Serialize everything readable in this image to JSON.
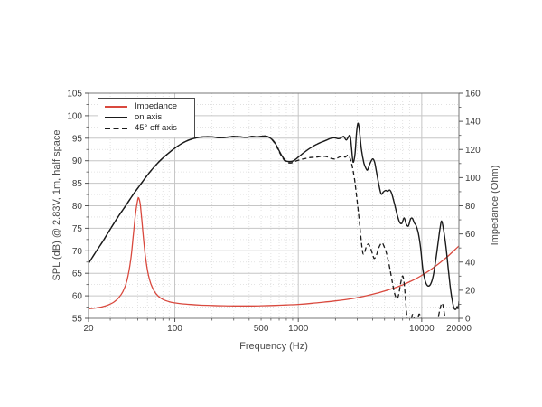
{
  "chart_data": {
    "type": "line",
    "title": "",
    "xlabel": "Frequency (Hz)",
    "ylabel_left": "SPL (dB) @ 2.83V, 1m, half space",
    "ylabel_right": "Impedance (Ohm)",
    "x_scale": "log",
    "xlim": [
      20,
      20000
    ],
    "ylim_left": [
      55,
      105
    ],
    "ylim_right": [
      0,
      160
    ],
    "grid": "major+minor",
    "legend_position": "top-left",
    "x_tick_labels": [
      {
        "value": 20,
        "label": "20"
      },
      {
        "value": 100,
        "label": "100"
      },
      {
        "value": 500,
        "label": "500"
      },
      {
        "value": 1000,
        "label": "1000"
      },
      {
        "value": 10000,
        "label": "10000"
      },
      {
        "value": 20000,
        "label": "20000"
      }
    ],
    "x_gridlines_major": [
      100,
      1000,
      10000
    ],
    "x_gridlines_minor": [
      30,
      40,
      50,
      60,
      70,
      80,
      90,
      200,
      300,
      400,
      500,
      600,
      700,
      800,
      900,
      2000,
      3000,
      4000,
      5000,
      6000,
      7000,
      8000,
      9000
    ],
    "y_left_ticks_major": [
      55,
      60,
      65,
      70,
      75,
      80,
      85,
      90,
      95,
      100,
      105
    ],
    "y_left_ticks_minor": [
      57.5,
      62.5,
      67.5,
      72.5,
      77.5,
      82.5,
      87.5,
      92.5,
      97.5,
      102.5
    ],
    "y_right_ticks_major": [
      0,
      20,
      40,
      60,
      80,
      100,
      120,
      140,
      160
    ],
    "y_right_ticks_minor": [
      10,
      30,
      50,
      70,
      90,
      110,
      130,
      150
    ],
    "series": [
      {
        "name": "Impedance",
        "axis": "right",
        "color": "#d9493e",
        "style": "solid",
        "points": [
          [
            20,
            6.8
          ],
          [
            23,
            7.4
          ],
          [
            26,
            8.3
          ],
          [
            29,
            9.6
          ],
          [
            32,
            11.5
          ],
          [
            35,
            14.5
          ],
          [
            38,
            19
          ],
          [
            41,
            27
          ],
          [
            44,
            42
          ],
          [
            46,
            58
          ],
          [
            48,
            74
          ],
          [
            50,
            84
          ],
          [
            51,
            85.5
          ],
          [
            52.5,
            81
          ],
          [
            54,
            70
          ],
          [
            56,
            55
          ],
          [
            58,
            43
          ],
          [
            61,
            31
          ],
          [
            64,
            24.5
          ],
          [
            68,
            19.5
          ],
          [
            73,
            16
          ],
          [
            80,
            13.4
          ],
          [
            90,
            11.8
          ],
          [
            100,
            11
          ],
          [
            115,
            10.3
          ],
          [
            135,
            9.8
          ],
          [
            160,
            9.4
          ],
          [
            200,
            9.1
          ],
          [
            250,
            8.9
          ],
          [
            320,
            8.8
          ],
          [
            400,
            8.8
          ],
          [
            500,
            8.9
          ],
          [
            650,
            9.2
          ],
          [
            800,
            9.5
          ],
          [
            1000,
            9.9
          ],
          [
            1300,
            10.7
          ],
          [
            1600,
            11.5
          ],
          [
            2000,
            12.4
          ],
          [
            2500,
            13.5
          ],
          [
            3000,
            14.7
          ],
          [
            3600,
            16.1
          ],
          [
            4300,
            17.8
          ],
          [
            5000,
            19.4
          ],
          [
            6000,
            21.6
          ],
          [
            7000,
            23.8
          ],
          [
            8000,
            26
          ],
          [
            9000,
            28.2
          ],
          [
            10000,
            30.5
          ],
          [
            11000,
            32.7
          ],
          [
            12000,
            35
          ],
          [
            13500,
            38.3
          ],
          [
            15000,
            41.5
          ],
          [
            16500,
            44.6
          ],
          [
            18000,
            47.6
          ],
          [
            20000,
            51.5
          ]
        ]
      },
      {
        "name": "on axis",
        "axis": "left",
        "color": "#1a1a1a",
        "style": "solid",
        "points": [
          [
            20,
            67.2
          ],
          [
            23,
            69.8
          ],
          [
            26,
            72
          ],
          [
            30,
            74.8
          ],
          [
            35,
            77.7
          ],
          [
            40,
            80
          ],
          [
            46,
            82.5
          ],
          [
            52,
            84.5
          ],
          [
            60,
            86.8
          ],
          [
            70,
            89
          ],
          [
            80,
            90.6
          ],
          [
            90,
            91.8
          ],
          [
            100,
            92.8
          ],
          [
            115,
            93.9
          ],
          [
            130,
            94.6
          ],
          [
            150,
            95.1
          ],
          [
            170,
            95.3
          ],
          [
            200,
            95.3
          ],
          [
            230,
            95.1
          ],
          [
            260,
            95.2
          ],
          [
            300,
            95.4
          ],
          [
            340,
            95.3
          ],
          [
            380,
            95.2
          ],
          [
            420,
            95.4
          ],
          [
            460,
            95.3
          ],
          [
            500,
            95.4
          ],
          [
            540,
            95.5
          ],
          [
            580,
            95.2
          ],
          [
            620,
            94.6
          ],
          [
            660,
            93.6
          ],
          [
            700,
            92.2
          ],
          [
            740,
            91
          ],
          [
            790,
            90
          ],
          [
            850,
            89.8
          ],
          [
            900,
            89.9
          ],
          [
            950,
            90.3
          ],
          [
            1000,
            90.8
          ],
          [
            1100,
            91.7
          ],
          [
            1200,
            92.5
          ],
          [
            1300,
            93.1
          ],
          [
            1400,
            93.6
          ],
          [
            1500,
            94
          ],
          [
            1600,
            94.3
          ],
          [
            1700,
            94.6
          ],
          [
            1800,
            94.9
          ],
          [
            1950,
            95.1
          ],
          [
            2100,
            94.9
          ],
          [
            2200,
            95
          ],
          [
            2330,
            95.4
          ],
          [
            2450,
            94.6
          ],
          [
            2620,
            95.6
          ],
          [
            2700,
            93
          ],
          [
            2780,
            89.7
          ],
          [
            2880,
            91.5
          ],
          [
            2960,
            96
          ],
          [
            3040,
            98.3
          ],
          [
            3120,
            97
          ],
          [
            3250,
            92.5
          ],
          [
            3400,
            89.5
          ],
          [
            3550,
            88.2
          ],
          [
            3650,
            88
          ],
          [
            3800,
            89.3
          ],
          [
            4000,
            90.4
          ],
          [
            4150,
            89.7
          ],
          [
            4300,
            87.5
          ],
          [
            4500,
            84.6
          ],
          [
            4700,
            82.6
          ],
          [
            4900,
            83.1
          ],
          [
            5100,
            83.4
          ],
          [
            5300,
            83.2
          ],
          [
            5500,
            83.5
          ],
          [
            5700,
            82.8
          ],
          [
            6000,
            80.6
          ],
          [
            6300,
            78.2
          ],
          [
            6600,
            76.4
          ],
          [
            6900,
            76.1
          ],
          [
            7200,
            77.3
          ],
          [
            7500,
            75.9
          ],
          [
            7800,
            75.5
          ],
          [
            8100,
            77
          ],
          [
            8400,
            77.2
          ],
          [
            8700,
            76.2
          ],
          [
            9000,
            75.6
          ],
          [
            9400,
            73.8
          ],
          [
            9800,
            70.5
          ],
          [
            10200,
            66
          ],
          [
            10700,
            63.2
          ],
          [
            11200,
            62.2
          ],
          [
            11800,
            62.6
          ],
          [
            12400,
            64.5
          ],
          [
            13000,
            68
          ],
          [
            13600,
            72
          ],
          [
            14100,
            75.2
          ],
          [
            14500,
            76.6
          ],
          [
            15000,
            74.8
          ],
          [
            15700,
            71
          ],
          [
            16400,
            66
          ],
          [
            17100,
            61.5
          ],
          [
            17800,
            58.5
          ],
          [
            18300,
            57.2
          ],
          [
            18900,
            57
          ],
          [
            19300,
            57.6
          ],
          [
            19700,
            57.2
          ],
          [
            20000,
            58.8
          ]
        ]
      },
      {
        "name": "45° off axis",
        "axis": "left",
        "color": "#1a1a1a",
        "style": "dashed",
        "points": [
          [
            20,
            67.2
          ],
          [
            23,
            69.8
          ],
          [
            26,
            72
          ],
          [
            30,
            74.8
          ],
          [
            35,
            77.7
          ],
          [
            40,
            80
          ],
          [
            46,
            82.5
          ],
          [
            52,
            84.5
          ],
          [
            60,
            86.8
          ],
          [
            70,
            89
          ],
          [
            80,
            90.6
          ],
          [
            90,
            91.8
          ],
          [
            100,
            92.8
          ],
          [
            115,
            93.9
          ],
          [
            130,
            94.6
          ],
          [
            150,
            95.1
          ],
          [
            170,
            95.3
          ],
          [
            200,
            95.3
          ],
          [
            230,
            95.1
          ],
          [
            260,
            95.2
          ],
          [
            300,
            95.4
          ],
          [
            340,
            95.3
          ],
          [
            380,
            95.2
          ],
          [
            420,
            95.4
          ],
          [
            460,
            95.3
          ],
          [
            500,
            95.4
          ],
          [
            540,
            95.5
          ],
          [
            580,
            95.2
          ],
          [
            620,
            94.5
          ],
          [
            660,
            93.4
          ],
          [
            700,
            92
          ],
          [
            740,
            90.8
          ],
          [
            790,
            89.8
          ],
          [
            850,
            89.5
          ],
          [
            900,
            89.6
          ],
          [
            950,
            89.9
          ],
          [
            1000,
            90.1
          ],
          [
            1100,
            90.4
          ],
          [
            1250,
            90.7
          ],
          [
            1400,
            90.8
          ],
          [
            1550,
            91
          ],
          [
            1700,
            90.9
          ],
          [
            1850,
            90.5
          ],
          [
            2000,
            90.4
          ],
          [
            2150,
            90.8
          ],
          [
            2300,
            91
          ],
          [
            2400,
            90.8
          ],
          [
            2550,
            91.2
          ],
          [
            2700,
            89.5
          ],
          [
            2850,
            86
          ],
          [
            3000,
            81
          ],
          [
            3150,
            75.5
          ],
          [
            3300,
            70.2
          ],
          [
            3400,
            69.3
          ],
          [
            3550,
            70.8
          ],
          [
            3700,
            71.5
          ],
          [
            3850,
            70.6
          ],
          [
            4000,
            69.2
          ],
          [
            4120,
            68.3
          ],
          [
            4280,
            68.9
          ],
          [
            4450,
            70.4
          ],
          [
            4650,
            71.5
          ],
          [
            4800,
            71.7
          ],
          [
            4950,
            71
          ],
          [
            5150,
            69.7
          ],
          [
            5350,
            67.9
          ],
          [
            5550,
            65.7
          ],
          [
            5750,
            63.4
          ],
          [
            5950,
            61.2
          ],
          [
            6150,
            59.8
          ],
          [
            6350,
            59.4
          ],
          [
            6550,
            60.6
          ],
          [
            6750,
            62.8
          ],
          [
            6950,
            64.3
          ],
          [
            7100,
            64
          ],
          [
            7250,
            62
          ],
          [
            7400,
            59
          ],
          [
            7550,
            56
          ],
          [
            7750,
            53.2
          ],
          [
            7950,
            52.8
          ],
          [
            8150,
            54
          ],
          [
            8400,
            55.8
          ],
          [
            8650,
            55.2
          ],
          [
            8900,
            53.8
          ],
          [
            9200,
            54.4
          ],
          [
            9500,
            55.9
          ],
          [
            9800,
            55.3
          ],
          [
            10200,
            53.3
          ],
          [
            10800,
            52
          ],
          [
            11500,
            52.5
          ],
          [
            12200,
            53
          ],
          [
            12900,
            53.8
          ],
          [
            13600,
            55.3
          ],
          [
            14200,
            57.6
          ],
          [
            14700,
            58.3
          ],
          [
            15200,
            56.3
          ],
          [
            15800,
            53.5
          ],
          [
            16400,
            51
          ]
        ]
      }
    ]
  },
  "legend": {
    "items": [
      "Impedance",
      "on axis",
      "45° off axis"
    ]
  }
}
